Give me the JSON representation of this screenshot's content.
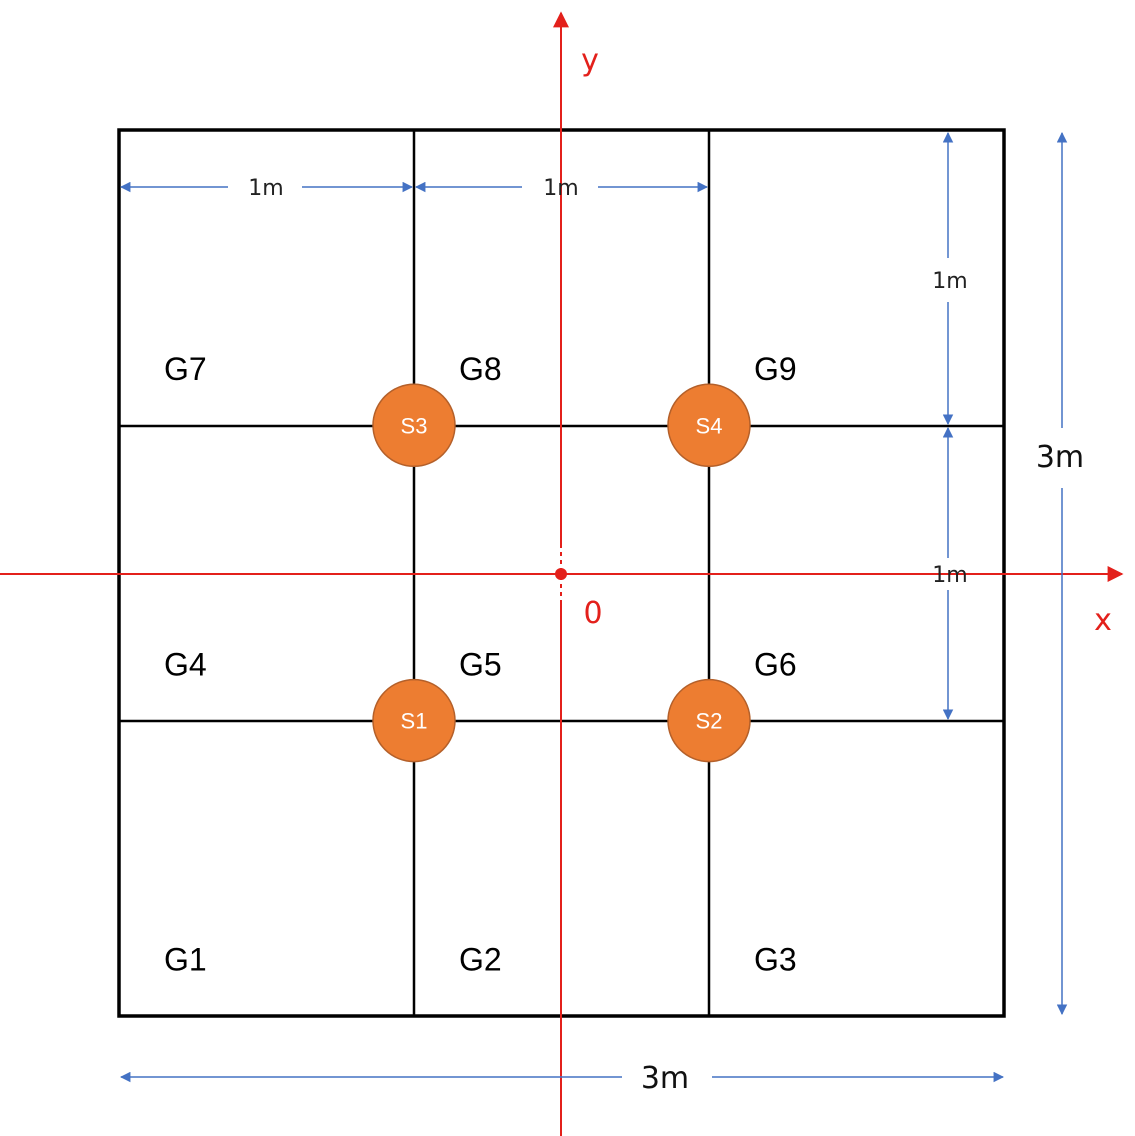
{
  "grid": {
    "cells": [
      {
        "id": "g7",
        "label": "G7",
        "col": 0,
        "row": 0
      },
      {
        "id": "g8",
        "label": "G8",
        "col": 1,
        "row": 0
      },
      {
        "id": "g9",
        "label": "G9",
        "col": 2,
        "row": 0
      },
      {
        "id": "g4",
        "label": "G4",
        "col": 0,
        "row": 1
      },
      {
        "id": "g5",
        "label": "G5",
        "col": 1,
        "row": 1
      },
      {
        "id": "g6",
        "label": "G6",
        "col": 2,
        "row": 1
      },
      {
        "id": "g1",
        "label": "G1",
        "col": 0,
        "row": 2
      },
      {
        "id": "g2",
        "label": "G2",
        "col": 1,
        "row": 2
      },
      {
        "id": "g3",
        "label": "G3",
        "col": 2,
        "row": 2
      }
    ]
  },
  "sensors": [
    {
      "id": "s3",
      "label": "S3",
      "gx": 1,
      "gy": 1
    },
    {
      "id": "s4",
      "label": "S4",
      "gx": 2,
      "gy": 1
    },
    {
      "id": "s1",
      "label": "S1",
      "gx": 1,
      "gy": 2
    },
    {
      "id": "s2",
      "label": "S2",
      "gx": 2,
      "gy": 2
    }
  ],
  "dimensions": {
    "top_left": "1m",
    "top_middle": "1m",
    "right_upper": "1m",
    "right_lower": "1m",
    "total_height": "3m",
    "total_width": "3m"
  },
  "axes": {
    "x_label": "x",
    "y_label": "y",
    "origin_label": "0"
  },
  "colors": {
    "grid_line": "#000000",
    "axis": "#e3201b",
    "dimension_arrow": "#4472c4",
    "sensor_fill": "#ed7d31",
    "sensor_stroke": "#b4602a"
  }
}
